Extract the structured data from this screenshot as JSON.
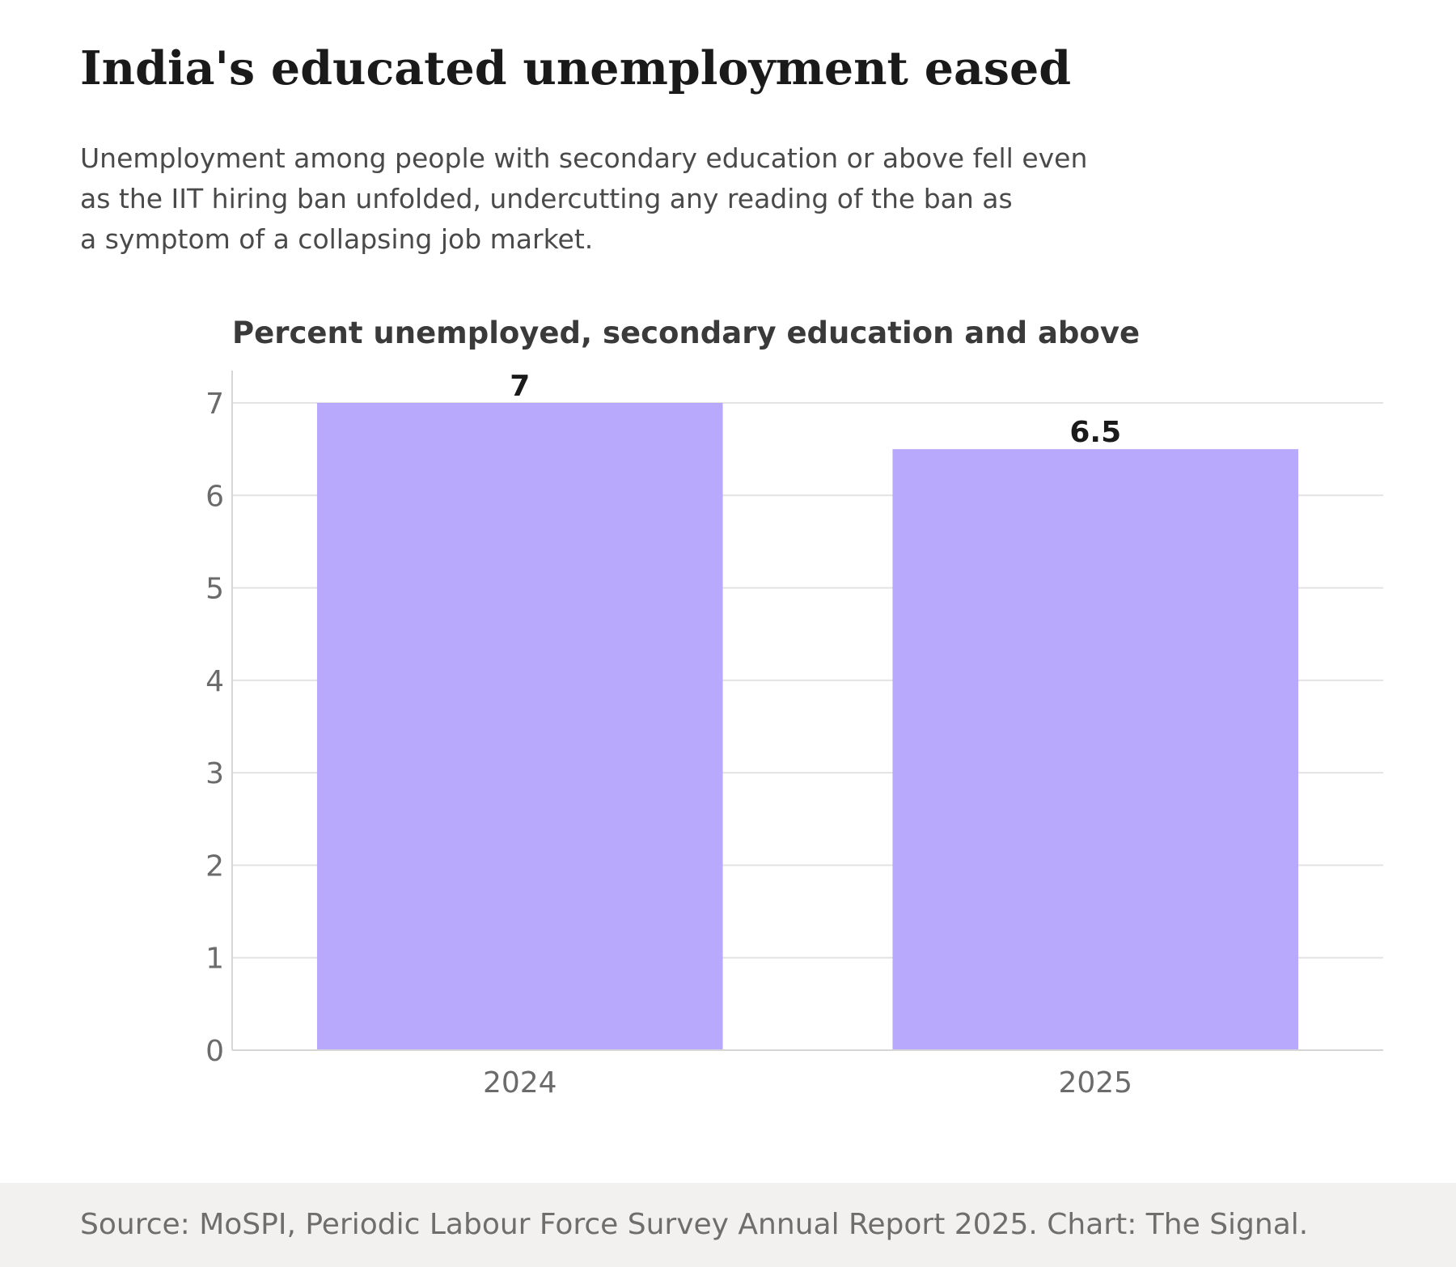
{
  "header": {
    "title": "India's educated unemployment eased",
    "subtitle_lines": [
      "Unemployment among people with secondary education or above fell even",
      "as the IIT hiring ban unfolded, undercutting any reading of the ban as",
      "a symptom of a collapsing job market."
    ]
  },
  "chart_data": {
    "type": "bar",
    "title": "Percent unemployed, secondary education and above",
    "categories": [
      "2024",
      "2025"
    ],
    "values": [
      7,
      6.5
    ],
    "value_labels": [
      "7",
      "6.5"
    ],
    "yticks": [
      "0",
      "1",
      "2",
      "3",
      "4",
      "5",
      "6",
      "7"
    ],
    "ylim": [
      0,
      7.35
    ],
    "xlabel": "",
    "ylabel": "",
    "grid": true,
    "bar_color": "#b8a9fc",
    "grid_color": "#e3e3e3",
    "axis_color": "#d6d6d6",
    "tick_label_color": "#6b6b6b",
    "value_label_color": "#1a1a1a",
    "title_color": "#3a3a3a"
  },
  "footer": {
    "source": "Source: MoSPI, Periodic Labour Force Survey Annual Report 2025. Chart: The Signal.",
    "background": "#f2f1ef"
  }
}
